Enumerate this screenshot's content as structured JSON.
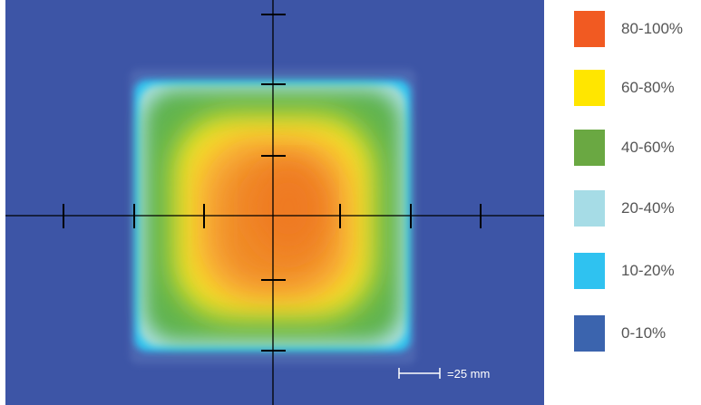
{
  "chart_data": {
    "type": "heatmap",
    "title": "",
    "xlabel": "",
    "ylabel": "",
    "scale_label": "=25 mm",
    "legend": [
      {
        "label": "80-100%",
        "color": "#f15a22"
      },
      {
        "label": "60-80%",
        "color": "#ffe600"
      },
      {
        "label": "40-60%",
        "color": "#6aa842"
      },
      {
        "label": "20-40%",
        "color": "#a6dce6"
      },
      {
        "label": "10-20%",
        "color": "#2fc2f0"
      },
      {
        "label": "0-10%",
        "color": "#3b64ae"
      }
    ],
    "legend_position": "right",
    "background_color": "#3d55a6"
  }
}
